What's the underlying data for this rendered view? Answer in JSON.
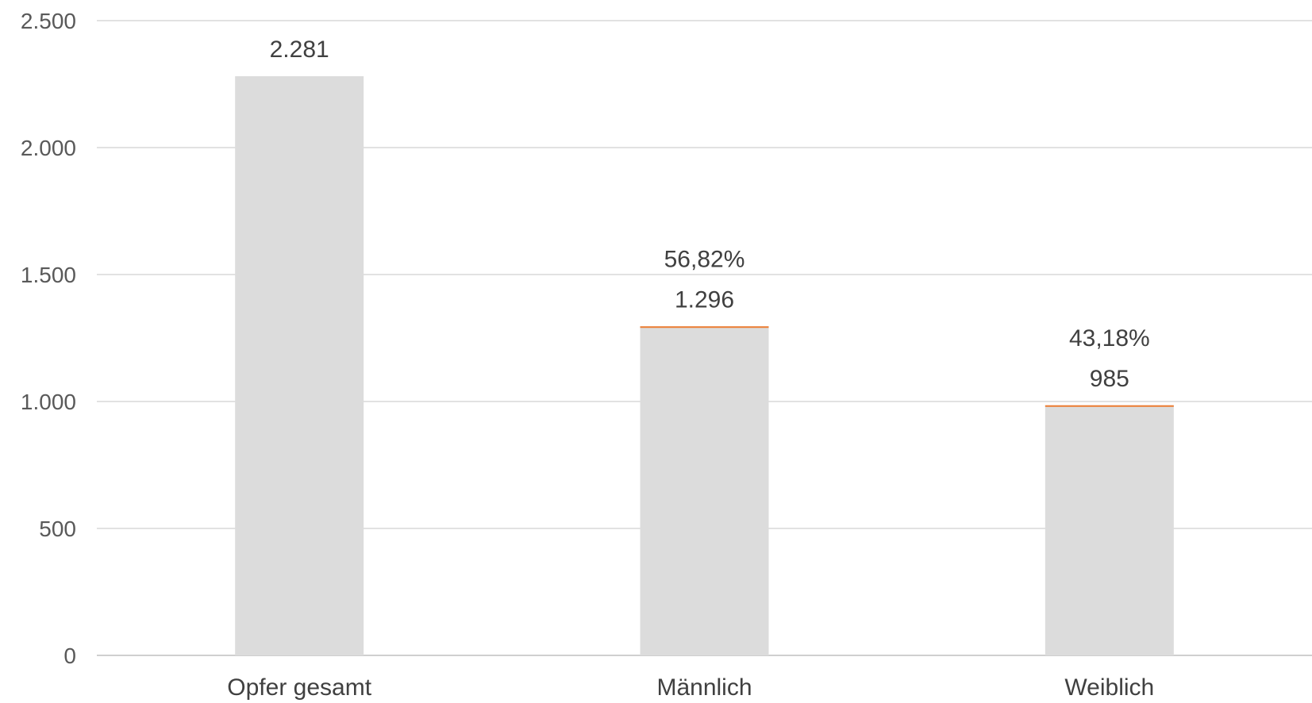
{
  "chart_data": {
    "type": "bar",
    "categories": [
      "Opfer gesamt",
      "Männlich",
      "Weiblich"
    ],
    "values": [
      2281,
      1296,
      985
    ],
    "value_labels": [
      "2.281",
      "1.296",
      "985"
    ],
    "share_labels": [
      "",
      "56,82%",
      "43,18%"
    ],
    "yticks": [
      0,
      500,
      1000,
      1500,
      2000,
      2500
    ],
    "ytick_labels": [
      "0",
      "500",
      "1.000",
      "1.500",
      "2.000",
      "2.500"
    ],
    "ylim": [
      0,
      2500
    ],
    "title": "",
    "xlabel": "",
    "ylabel": "",
    "grid": true,
    "legend": "none",
    "colors": {
      "bar": "#dcdcdc",
      "bar_top_accent": "#ed7d31",
      "gridline": "#d9d9d9",
      "axis": "#bfbfbf"
    }
  }
}
